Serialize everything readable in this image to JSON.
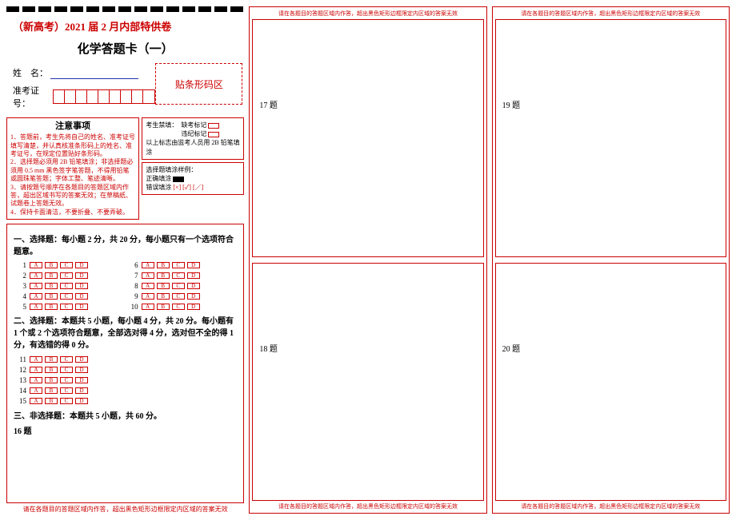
{
  "header": {
    "exam_name": "（新高考）2021 届 2 月内部特供卷",
    "subject_title": "化学答题卡（一）"
  },
  "identity": {
    "name_label": "姓　名：",
    "admit_label": "准考证号：",
    "admit_cells": 9,
    "barcode_label": "贴条形码区"
  },
  "notice": {
    "title": "注意事项",
    "items": [
      "1．答题前，考生先将自己的姓名、准考证号填写清楚，并认真核准条形码上的姓名、准考证号，在规定位置贴好条形码。",
      "2．选择题必须用 2B 铅笔填涂；非选择题必须用 0.5 mm 黑色签字笔答题，不得用铅笔或圆珠笔答题；字体工整、笔迹清晰。",
      "3．请按题号顺序在各题目的答题区域内作答，超出区域书写的答案无效；在草稿纸、试题卷上答题无效。",
      "4．保持卡面清洁，不要折叠、不要弄破。"
    ]
  },
  "candidate_ban": {
    "title": "考生禁填：",
    "absent_label": "缺考标记",
    "violation_label": "违纪标记",
    "note": "以上标志由监考人员用 2B 铅笔填涂"
  },
  "fill_sample": {
    "title": "选择题填涂样例：",
    "correct": "正确填涂",
    "wrong": "错误填涂",
    "wrong_marks": "[×] [✓] [／]"
  },
  "section1": {
    "heading": "一、选择题：每小题 2 分，共 20 分，每小题只有一个选项符合题意。",
    "left_q": [
      1,
      2,
      3,
      4,
      5
    ],
    "right_q": [
      6,
      7,
      8,
      9,
      10
    ],
    "opts": [
      "A",
      "B",
      "C",
      "D"
    ]
  },
  "section2": {
    "heading": "二、选择题：本题共 5 小题，每小题 4 分，共 20 分。每小题有 1 个或 2 个选项符合题意，全部选对得 4 分，选对但不全的得 1 分，有选错的得 0 分。",
    "q": [
      11,
      12,
      13,
      14,
      15
    ],
    "opts": [
      "A",
      "B",
      "C",
      "D"
    ]
  },
  "section3": {
    "heading": "三、非选择题：本题共 5 小题，共 60 分。",
    "first_q": "16 题"
  },
  "col2": {
    "top_warn": "请在各题目的答题区域内作答，超出黑色矩形边框限定内区域的答案无效",
    "q17": "17 题",
    "q18": "18 题",
    "bottom_warn": "请在各题目的答题区域内作答，超出黑色矩形边框限定内区域的答案无效"
  },
  "col3": {
    "top_warn": "请在各题目的答题区域内作答，超出黑色矩形边框限定内区域的答案无效",
    "q19": "19 题",
    "q20": "20 题",
    "bottom_warn": "请在各题目的答题区域内作答，超出黑色矩形边框限定内区域的答案无效"
  },
  "footer": {
    "col1_warn": "请在各题目的答题区域内作答，超出黑色矩形边框限定内区域的答案无效"
  },
  "style": {
    "red": "#cc0000",
    "blue": "#2233aa",
    "background": "#ffffff"
  }
}
